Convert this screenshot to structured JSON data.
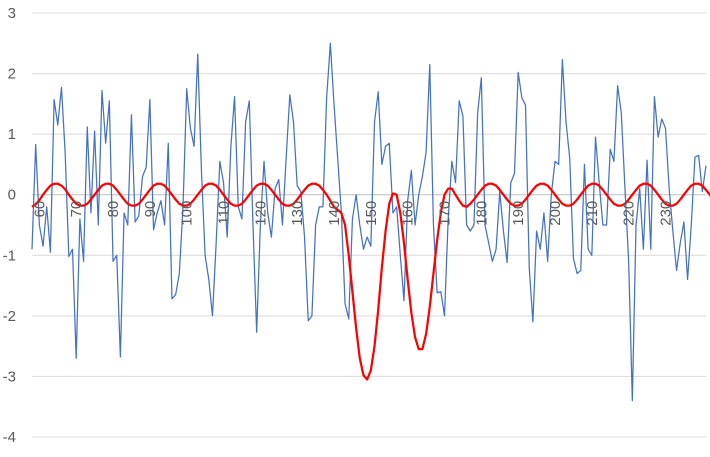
{
  "chart_data": {
    "type": "line",
    "title": "",
    "xlabel": "",
    "ylabel": "",
    "x_start": 58,
    "x_end": 238,
    "x_ticks": [
      60,
      70,
      80,
      90,
      100,
      110,
      120,
      130,
      140,
      150,
      160,
      170,
      180,
      190,
      200,
      210,
      220,
      230
    ],
    "y_ticks": [
      -4,
      -3,
      -2,
      -1,
      0,
      1,
      2,
      3
    ],
    "ylim": [
      -4,
      3
    ],
    "grid": "horizontal",
    "legend": "none",
    "series": [
      {
        "color": "#4472C4",
        "values": [
          -0.9,
          0.83,
          -0.5,
          -0.85,
          -0.2,
          -0.95,
          1.57,
          1.15,
          1.77,
          0.7,
          -1.02,
          -0.9,
          -2.7,
          -0.4,
          -1.1,
          1.12,
          -0.3,
          1.05,
          -0.5,
          1.72,
          0.85,
          1.55,
          -1.1,
          -1.0,
          -2.68,
          -0.3,
          -0.5,
          1.32,
          -0.45,
          -0.35,
          0.3,
          0.45,
          1.57,
          -0.58,
          -0.3,
          -0.1,
          -0.5,
          0.85,
          -1.72,
          -1.65,
          -1.3,
          -0.2,
          1.75,
          1.1,
          0.8,
          2.32,
          0.4,
          -1.0,
          -1.4,
          -2.0,
          -0.8,
          0.55,
          0.2,
          -0.7,
          0.8,
          1.62,
          -0.2,
          -0.4,
          1.2,
          1.55,
          -0.5,
          -2.27,
          -0.5,
          0.55,
          -0.3,
          -0.7,
          0.1,
          0.25,
          -0.5,
          0.6,
          1.65,
          1.2,
          0.15,
          0.05,
          -0.7,
          -2.08,
          -2.0,
          -0.5,
          -0.2,
          -0.2,
          1.6,
          2.5,
          1.5,
          0.6,
          -0.3,
          -1.8,
          -2.05,
          -0.4,
          0.0,
          -0.5,
          -0.9,
          -0.7,
          -0.85,
          1.2,
          1.7,
          0.5,
          0.8,
          0.85,
          -0.3,
          -0.2,
          -1.0,
          -1.75,
          -0.1,
          0.4,
          -0.5,
          0.0,
          0.3,
          0.7,
          2.15,
          -0.5,
          -1.62,
          -1.6,
          -2.0,
          -0.4,
          0.55,
          0.2,
          1.55,
          1.3,
          -0.5,
          -0.6,
          -0.5,
          1.35,
          1.93,
          -0.5,
          -0.8,
          -1.1,
          -0.9,
          0.05,
          -0.6,
          -1.12,
          0.2,
          0.35,
          2.02,
          1.6,
          1.48,
          -1.2,
          -2.1,
          -0.6,
          -0.9,
          -0.3,
          -1.1,
          0.0,
          0.55,
          0.5,
          2.23,
          1.2,
          0.6,
          -1.05,
          -1.3,
          -1.25,
          0.5,
          -0.9,
          -1.0,
          0.95,
          0.2,
          -0.5,
          -0.5,
          0.75,
          0.55,
          1.8,
          1.35,
          0.1,
          -1.1,
          -3.4,
          -0.5,
          0.1,
          -0.9,
          0.57,
          -0.9,
          1.62,
          0.95,
          1.25,
          1.1,
          0.1,
          -0.6,
          -1.25,
          -0.8,
          -0.45,
          -1.4,
          -0.5,
          0.62,
          0.65,
          0.05,
          0.48
        ]
      },
      {
        "color": "#FF0000",
        "values": [
          -0.2,
          -0.16,
          -0.09,
          0.0,
          0.08,
          0.15,
          0.18,
          0.18,
          0.15,
          0.09,
          0.0,
          -0.08,
          -0.15,
          -0.18,
          -0.18,
          -0.15,
          -0.08,
          0.0,
          0.08,
          0.15,
          0.18,
          0.18,
          0.15,
          0.08,
          0.0,
          -0.08,
          -0.15,
          -0.18,
          -0.18,
          -0.15,
          -0.08,
          0.0,
          0.08,
          0.15,
          0.18,
          0.18,
          0.15,
          0.08,
          0.0,
          -0.08,
          -0.15,
          -0.18,
          -0.18,
          -0.15,
          -0.08,
          0.0,
          0.08,
          0.15,
          0.18,
          0.18,
          0.15,
          0.08,
          0.0,
          -0.08,
          -0.15,
          -0.18,
          -0.18,
          -0.15,
          -0.08,
          0.0,
          0.08,
          0.15,
          0.18,
          0.18,
          0.15,
          0.08,
          0.0,
          -0.08,
          -0.15,
          -0.18,
          -0.18,
          -0.15,
          -0.08,
          0.0,
          0.08,
          0.15,
          0.18,
          0.18,
          0.15,
          0.08,
          0.0,
          -0.1,
          -0.2,
          -0.25,
          -0.3,
          -0.5,
          -1.0,
          -1.6,
          -2.2,
          -2.7,
          -2.98,
          -3.05,
          -2.9,
          -2.5,
          -1.9,
          -1.2,
          -0.6,
          -0.15,
          0.02,
          0.0,
          -0.3,
          -0.8,
          -1.4,
          -1.95,
          -2.35,
          -2.55,
          -2.55,
          -2.3,
          -1.85,
          -1.3,
          -0.75,
          -0.3,
          0.0,
          0.1,
          0.1,
          0.0,
          -0.1,
          -0.18,
          -0.2,
          -0.15,
          -0.08,
          0.0,
          0.08,
          0.15,
          0.18,
          0.18,
          0.15,
          0.08,
          0.0,
          -0.08,
          -0.15,
          -0.18,
          -0.18,
          -0.15,
          -0.08,
          0.0,
          0.08,
          0.15,
          0.18,
          0.18,
          0.15,
          0.08,
          0.0,
          -0.08,
          -0.15,
          -0.18,
          -0.18,
          -0.15,
          -0.08,
          0.0,
          0.08,
          0.15,
          0.18,
          0.18,
          0.15,
          0.08,
          0.0,
          -0.08,
          -0.15,
          -0.18,
          -0.18,
          -0.15,
          -0.08,
          0.0,
          0.08,
          0.15,
          0.18,
          0.18,
          0.15,
          0.08,
          0.0,
          -0.08,
          -0.15,
          -0.18,
          -0.18,
          -0.15,
          -0.08,
          0.0,
          0.08,
          0.15,
          0.18,
          0.18,
          0.15,
          0.08,
          0.0,
          -0.08,
          -0.15,
          -0.18,
          -0.18,
          -0.1,
          0.0,
          0.05
        ]
      }
    ]
  }
}
